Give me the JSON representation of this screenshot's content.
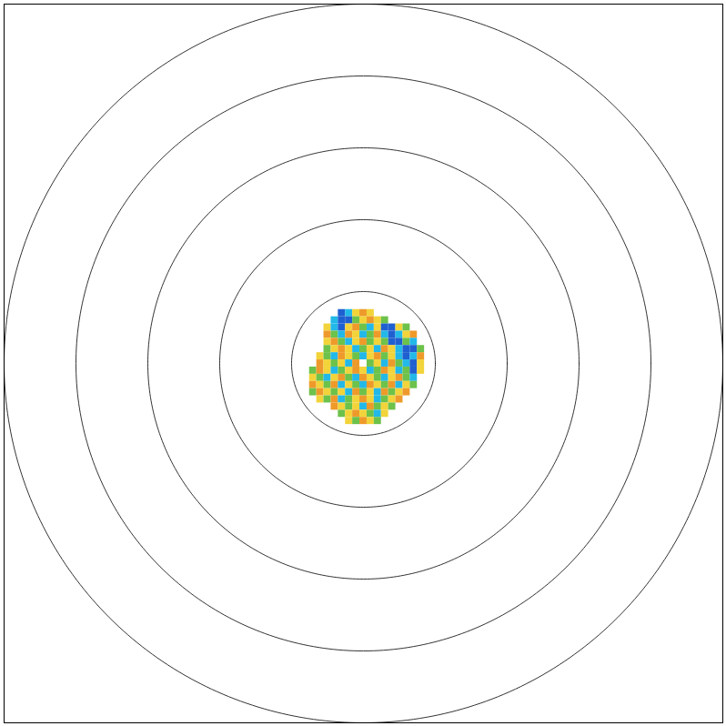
{
  "chart_data": {
    "type": "polar_field",
    "xlim": [
      -5,
      5
    ],
    "ylim": [
      -5,
      5
    ],
    "rings": [
      1,
      2,
      3,
      4,
      5
    ],
    "tick_labels": false,
    "grid": false,
    "x": [
      -0.8,
      -0.7,
      -0.6,
      -0.5,
      -0.4,
      -0.3,
      -0.2,
      -0.1,
      0,
      0.1,
      0.2,
      0.3,
      0.4,
      0.5,
      0.6,
      0.7,
      0.8
    ],
    "y": [
      0.7,
      0.6,
      0.5,
      0.4,
      0.3,
      0.2,
      0.1,
      0,
      -0.1,
      -0.2,
      -0.3,
      -0.4,
      -0.5,
      -0.6,
      -0.7,
      -0.8
    ],
    "cells": [
      [
        null,
        null,
        null,
        null,
        null,
        -2,
        -1,
        1,
        2,
        1,
        null,
        null,
        null,
        null,
        null,
        null,
        null
      ],
      [
        null,
        null,
        null,
        null,
        -1,
        -2,
        -2,
        0,
        1,
        2,
        1,
        0,
        null,
        null,
        null,
        null,
        null
      ],
      [
        null,
        null,
        null,
        1,
        -1,
        -2,
        1,
        2,
        0,
        -1,
        1,
        -2,
        -2,
        1,
        0,
        null,
        null
      ],
      [
        null,
        null,
        null,
        2,
        0,
        -1,
        2,
        1,
        -1,
        0,
        2,
        -1,
        -2,
        -1,
        1,
        2,
        null
      ],
      [
        null,
        null,
        null,
        1,
        2,
        0,
        -1,
        1,
        2,
        0,
        1,
        0,
        -2,
        -2,
        0,
        -1,
        null
      ],
      [
        null,
        null,
        null,
        0,
        1,
        2,
        1,
        -1,
        0,
        1,
        -1,
        2,
        1,
        -1,
        -2,
        -2,
        0
      ],
      [
        null,
        null,
        1,
        0,
        -1,
        2,
        1,
        0,
        -1,
        1,
        2,
        0,
        1,
        -1,
        -2,
        -1,
        2
      ],
      [
        null,
        null,
        2,
        1,
        0,
        1,
        -1,
        2,
        null,
        0,
        1,
        -1,
        2,
        0,
        -1,
        -2,
        1
      ],
      [
        null,
        0,
        2,
        1,
        -1,
        0,
        1,
        2,
        1,
        -1,
        0,
        2,
        1,
        -1,
        0,
        -2,
        1
      ],
      [
        null,
        1,
        0,
        -1,
        1,
        2,
        0,
        -1,
        2,
        1,
        0,
        -1,
        1,
        2,
        0,
        -1,
        null
      ],
      [
        null,
        2,
        1,
        0,
        2,
        -1,
        1,
        0,
        -1,
        2,
        1,
        0,
        2,
        -1,
        1,
        0,
        null
      ],
      [
        null,
        0,
        2,
        1,
        0,
        1,
        -1,
        2,
        0,
        1,
        -1,
        2,
        0,
        1,
        2,
        null,
        null
      ],
      [
        null,
        null,
        1,
        0,
        2,
        -1,
        0,
        1,
        2,
        1,
        -1,
        0,
        1,
        2,
        null,
        null,
        null
      ],
      [
        null,
        null,
        null,
        null,
        2,
        1,
        0,
        1,
        -1,
        2,
        0,
        1,
        0,
        null,
        null,
        null,
        null
      ],
      [
        null,
        null,
        null,
        null,
        null,
        0,
        1,
        2,
        1,
        0,
        -1,
        1,
        null,
        null,
        null,
        null,
        null
      ],
      [
        null,
        null,
        null,
        null,
        null,
        null,
        1,
        0,
        2,
        1,
        0,
        null,
        null,
        null,
        null,
        null,
        null
      ]
    ],
    "color_levels": [
      -2,
      -1,
      0,
      1,
      2
    ],
    "colors": [
      "#1f5fd0",
      "#22b8e8",
      "#6cc24a",
      "#f2d43a",
      "#ee9a2a"
    ]
  }
}
